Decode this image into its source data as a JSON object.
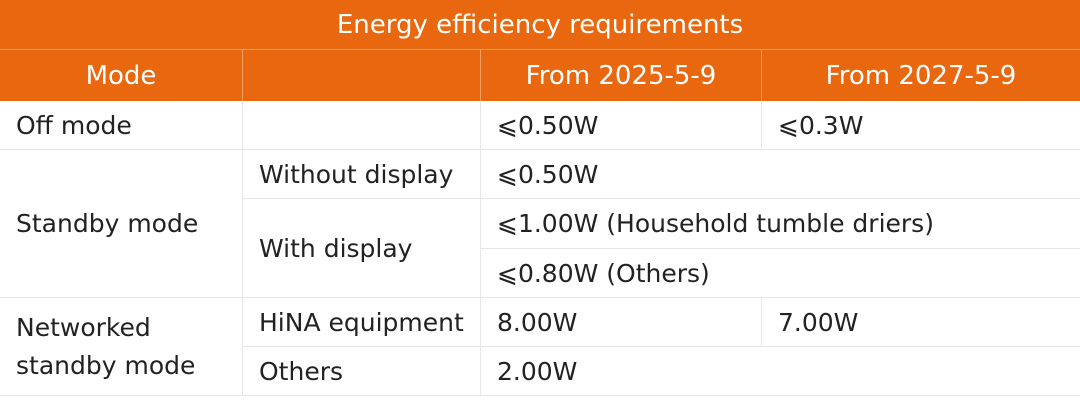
{
  "title": "Energy efficiency requirements",
  "headers": {
    "mode": "Mode",
    "sub": "",
    "from_2025": "From 2025-5-9",
    "from_2027": "From 2027-5-9"
  },
  "rows": {
    "off_mode": {
      "label": "Off mode",
      "value_2025": "⩽0.50W",
      "value_2027": "⩽0.3W"
    },
    "standby": {
      "label": "Standby mode",
      "without_display": {
        "label": "Without display",
        "value": "⩽0.50W"
      },
      "with_display": {
        "label": "With display",
        "value_dryers": "⩽1.00W (Household tumble driers)",
        "value_others": "⩽0.80W (Others)"
      }
    },
    "networked": {
      "label": "Networked standby mode",
      "hina": {
        "label": "HiNA equipment",
        "value_2025": "8.00W",
        "value_2027": "7.00W"
      },
      "others": {
        "label": "Others",
        "value": "2.00W"
      }
    }
  },
  "colors": {
    "header_bg": "#e8670f",
    "header_text": "#ffffff",
    "grid_line": "#e6e6e6"
  }
}
